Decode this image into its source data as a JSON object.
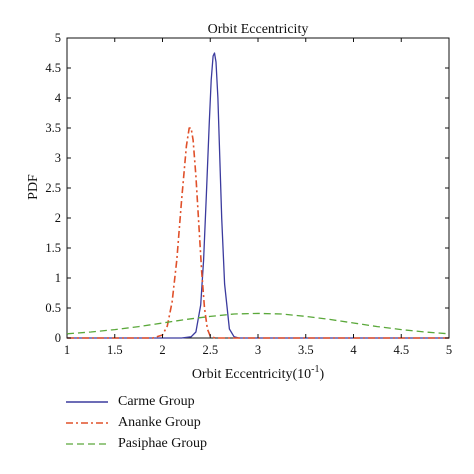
{
  "chart_data": {
    "type": "line",
    "title": "Orbit Eccentricity",
    "xlabel": "Orbit Eccentricity(10",
    "xlabel_sup": "-1",
    "xlabel_close": ")",
    "ylabel": "PDF",
    "xlim": [
      1,
      5
    ],
    "ylim": [
      0,
      5
    ],
    "xticks": [
      "1",
      "1.5",
      "2",
      "2.5",
      "3",
      "3.5",
      "4",
      "4.5",
      "5"
    ],
    "yticks": [
      "0",
      "0.5",
      "1",
      "1.5",
      "2",
      "2.5",
      "3",
      "3.5",
      "4",
      "4.5",
      "5"
    ],
    "grid": false,
    "legend_position": "below",
    "series": [
      {
        "name": "Carme Group",
        "color": "#3b3b9e",
        "style": "solid",
        "x": [
          1.0,
          2.2,
          2.3,
          2.35,
          2.4,
          2.43,
          2.46,
          2.49,
          2.51,
          2.53,
          2.545,
          2.56,
          2.58,
          2.6,
          2.62,
          2.65,
          2.7,
          2.75,
          2.8,
          3.0,
          5.0
        ],
        "y": [
          0,
          0,
          0.02,
          0.1,
          0.55,
          1.3,
          2.4,
          3.6,
          4.3,
          4.7,
          4.75,
          4.6,
          4.0,
          3.0,
          2.0,
          0.9,
          0.15,
          0.02,
          0,
          0,
          0
        ]
      },
      {
        "name": "Ananke Group",
        "color": "#e0502a",
        "style": "dashdot",
        "x": [
          1.0,
          1.9,
          2.0,
          2.05,
          2.1,
          2.15,
          2.2,
          2.25,
          2.28,
          2.3,
          2.32,
          2.35,
          2.38,
          2.41,
          2.44,
          2.47,
          2.5,
          2.55,
          2.6,
          5.0
        ],
        "y": [
          0,
          0,
          0.05,
          0.2,
          0.6,
          1.3,
          2.3,
          3.2,
          3.5,
          3.5,
          3.3,
          2.7,
          1.9,
          1.1,
          0.5,
          0.15,
          0.03,
          0,
          0,
          0
        ]
      },
      {
        "name": "Pasiphae Group",
        "color": "#5aa83a",
        "style": "dashed",
        "x": [
          1.0,
          1.25,
          1.5,
          1.75,
          2.0,
          2.25,
          2.5,
          2.75,
          3.0,
          3.25,
          3.5,
          3.75,
          4.0,
          4.25,
          4.5,
          4.75,
          5.0
        ],
        "y": [
          0.07,
          0.1,
          0.14,
          0.19,
          0.25,
          0.31,
          0.36,
          0.4,
          0.41,
          0.4,
          0.36,
          0.31,
          0.25,
          0.19,
          0.14,
          0.1,
          0.07
        ]
      }
    ]
  }
}
